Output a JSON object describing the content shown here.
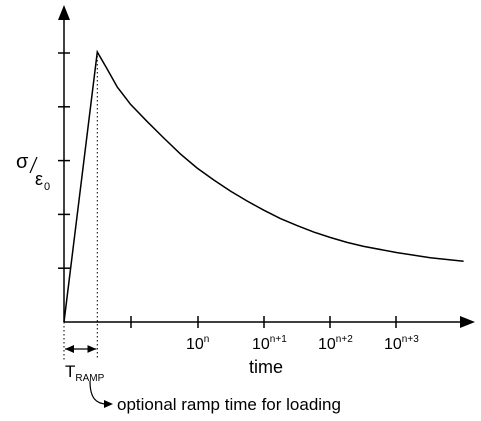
{
  "chart_data": {
    "type": "line",
    "title": "",
    "xlabel": "time",
    "ylabel": {
      "symbol": "σ",
      "denominator": "ε",
      "denominator_subscript": "0"
    },
    "x_ticks": [
      {
        "base": "10",
        "exp": "n"
      },
      {
        "base": "10",
        "exp": "n+1"
      },
      {
        "base": "10",
        "exp": "n+2"
      },
      {
        "base": "10",
        "exp": "n+3"
      }
    ],
    "y_tick_count": 5,
    "ramp": {
      "label": "T",
      "label_subscript": "RAMP",
      "annotation": "optional ramp time for loading"
    },
    "series": [
      {
        "points": [
          {
            "t": 0,
            "y": 0
          },
          {
            "t": 1,
            "y": 1.0
          },
          {
            "t": 1.3,
            "y": 0.936
          },
          {
            "t": 1.6,
            "y": 0.87
          },
          {
            "t": 2.0,
            "y": 0.806
          },
          {
            "t": 2.5,
            "y": 0.742
          },
          {
            "t": 3.0,
            "y": 0.681
          },
          {
            "t": 3.5,
            "y": 0.622
          },
          {
            "t": 4.0,
            "y": 0.57
          },
          {
            "t": 4.5,
            "y": 0.526
          },
          {
            "t": 5.0,
            "y": 0.485
          },
          {
            "t": 5.5,
            "y": 0.448
          },
          {
            "t": 6.0,
            "y": 0.414
          },
          {
            "t": 6.5,
            "y": 0.383
          },
          {
            "t": 7.0,
            "y": 0.357
          },
          {
            "t": 7.5,
            "y": 0.333
          },
          {
            "t": 8.0,
            "y": 0.313
          },
          {
            "t": 8.5,
            "y": 0.295
          },
          {
            "t": 9.0,
            "y": 0.28
          },
          {
            "t": 10.0,
            "y": 0.257
          },
          {
            "t": 11.0,
            "y": 0.238
          },
          {
            "t": 12.0,
            "y": 0.225
          }
        ]
      }
    ]
  }
}
